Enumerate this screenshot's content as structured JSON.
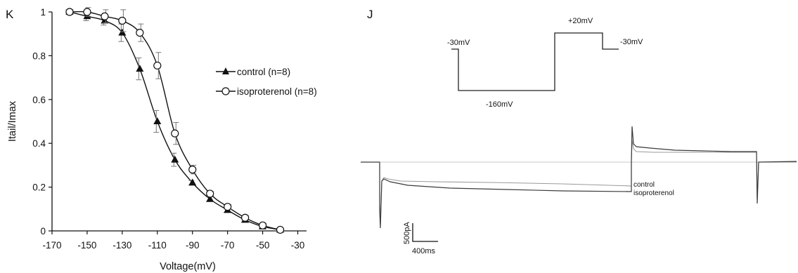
{
  "chart_data": [
    {
      "panel": "K",
      "type": "line",
      "xlabel": "Voltage(mV)",
      "ylabel": "Itail/Imax",
      "xlim": [
        -170,
        -25
      ],
      "ylim": [
        0,
        1
      ],
      "xticks": [
        -170,
        -150,
        -130,
        -110,
        -90,
        -70,
        -50,
        -30
      ],
      "yticks": [
        0,
        0.2,
        0.4,
        0.6,
        0.8,
        1
      ],
      "ytick_labels": [
        "0",
        "0.2",
        "0.4",
        "0.6",
        "0.8",
        "1"
      ],
      "legend_position": "center-right",
      "x": [
        -160,
        -150,
        -140,
        -130,
        -120,
        -110,
        -100,
        -90,
        -80,
        -70,
        -60,
        -50,
        -40
      ],
      "series": [
        {
          "name": "control (n=8)",
          "marker": "filled-triangle",
          "values": [
            1.0,
            0.98,
            0.96,
            0.905,
            0.74,
            0.5,
            0.325,
            0.22,
            0.145,
            0.095,
            0.05,
            0.02,
            0.005
          ],
          "errors": [
            0.01,
            0.02,
            0.02,
            0.04,
            0.05,
            0.05,
            0.03,
            0.01,
            0.01,
            0.01,
            0.01,
            0.01,
            0.005
          ]
        },
        {
          "name": "isoproterenol (n=8)",
          "marker": "open-circle",
          "values": [
            1.0,
            1.0,
            0.98,
            0.96,
            0.905,
            0.755,
            0.445,
            0.28,
            0.17,
            0.11,
            0.06,
            0.025,
            0.005
          ],
          "errors": [
            0.01,
            0.02,
            0.03,
            0.05,
            0.04,
            0.06,
            0.05,
            0.02,
            0.01,
            0.01,
            0.01,
            0.01,
            0.005
          ]
        }
      ]
    },
    {
      "panel": "J",
      "type": "line",
      "protocol_labels": [
        "-30mV",
        "-160mV",
        "+20mV",
        "-30mV"
      ],
      "trace_labels": [
        "control",
        "isoproterenol"
      ],
      "scale_bar": {
        "current": "500pA",
        "time": "400ms"
      },
      "colors": {
        "control": "#9a9a9a",
        "isoproterenol": "#3a3a3a",
        "axis": "#111111"
      }
    }
  ]
}
